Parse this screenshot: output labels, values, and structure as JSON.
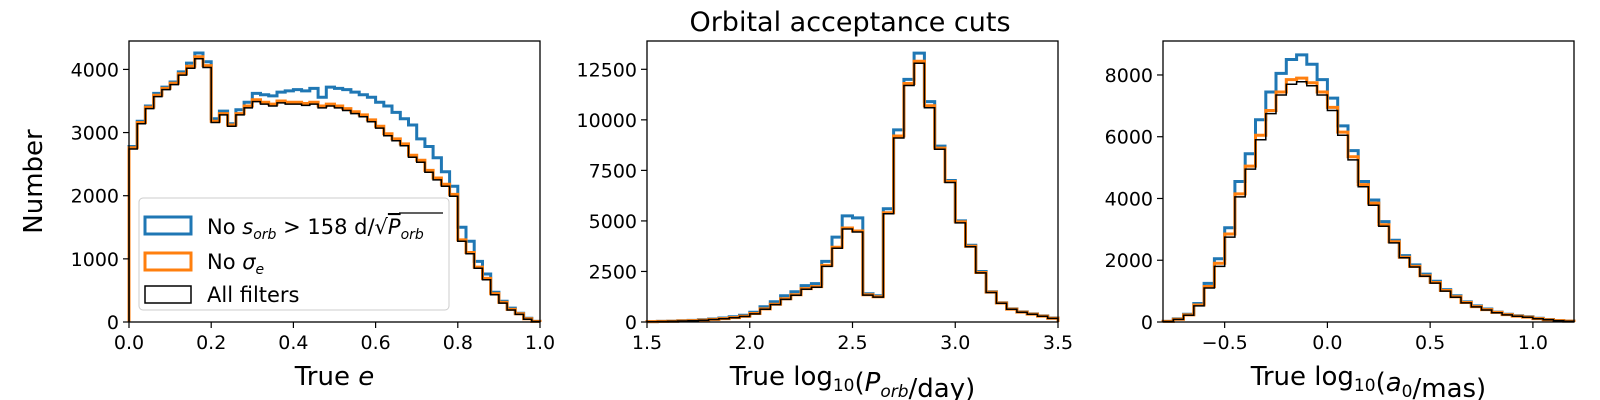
{
  "figure_title": "Orbital acceptance cuts",
  "colors": {
    "no_sorb": "#1f77b4",
    "no_sigma_e": "#ff7f0e",
    "all_filters": "#000000"
  },
  "legend": {
    "no_sorb_label": "No s_orb > 158 d/√P_orb",
    "no_sigma_label": "No σ_e",
    "all_label": "All filters"
  },
  "chart_data": [
    {
      "type": "histogram",
      "title": "",
      "xlabel": "True e",
      "ylabel": "Number",
      "xlim": [
        0.0,
        1.0
      ],
      "ylim": [
        0,
        4450
      ],
      "xticks": [
        0.0,
        0.2,
        0.4,
        0.6,
        0.8,
        1.0
      ],
      "xtick_labels": [
        "0.0",
        "0.2",
        "0.4",
        "0.6",
        "0.8",
        "1.0"
      ],
      "yticks": [
        0,
        1000,
        2000,
        3000,
        4000
      ],
      "ytick_labels": [
        "0",
        "1000",
        "2000",
        "3000",
        "4000"
      ],
      "legend_position": "lower-left",
      "bins": [
        0.0,
        0.02,
        0.04,
        0.06,
        0.08,
        0.1,
        0.12,
        0.14,
        0.16,
        0.18,
        0.2,
        0.22,
        0.24,
        0.26,
        0.28,
        0.3,
        0.32,
        0.34,
        0.36,
        0.38,
        0.4,
        0.42,
        0.44,
        0.46,
        0.48,
        0.5,
        0.52,
        0.54,
        0.56,
        0.58,
        0.6,
        0.62,
        0.64,
        0.66,
        0.68,
        0.7,
        0.72,
        0.74,
        0.76,
        0.78,
        0.8,
        0.82,
        0.84,
        0.86,
        0.88,
        0.9,
        0.92,
        0.94,
        0.96,
        0.98,
        1.0
      ],
      "series": [
        {
          "name": "No s_orb > 158 d/√P_orb",
          "key": "no_sorb",
          "values": [
            2780,
            3180,
            3420,
            3620,
            3720,
            3800,
            3960,
            4100,
            4260,
            4120,
            3220,
            3340,
            3140,
            3360,
            3480,
            3620,
            3600,
            3580,
            3640,
            3660,
            3680,
            3660,
            3700,
            3560,
            3720,
            3700,
            3680,
            3640,
            3600,
            3560,
            3480,
            3420,
            3320,
            3220,
            3120,
            2900,
            2780,
            2600,
            2380,
            2150,
            1500,
            1280,
            960,
            760,
            470,
            330,
            220,
            140,
            60,
            10
          ]
        },
        {
          "name": "No σ_e",
          "key": "no_sigma_e",
          "values": [
            2760,
            3160,
            3400,
            3590,
            3700,
            3780,
            3930,
            4050,
            4200,
            4060,
            3180,
            3300,
            3120,
            3300,
            3420,
            3520,
            3480,
            3450,
            3500,
            3480,
            3480,
            3460,
            3480,
            3420,
            3450,
            3420,
            3380,
            3330,
            3280,
            3200,
            3100,
            2980,
            2900,
            2820,
            2640,
            2560,
            2400,
            2280,
            2180,
            2020,
            1300,
            1100,
            870,
            690,
            450,
            310,
            200,
            130,
            50,
            10
          ]
        },
        {
          "name": "All filters",
          "key": "all_filters",
          "values": [
            2740,
            3140,
            3380,
            3570,
            3680,
            3760,
            3910,
            4020,
            4170,
            4030,
            3160,
            3280,
            3100,
            3280,
            3390,
            3490,
            3450,
            3420,
            3470,
            3450,
            3450,
            3430,
            3450,
            3390,
            3420,
            3390,
            3350,
            3300,
            3250,
            3170,
            3070,
            2950,
            2870,
            2790,
            2610,
            2530,
            2370,
            2250,
            2150,
            1990,
            1280,
            1080,
            850,
            670,
            430,
            300,
            190,
            120,
            45,
            8
          ]
        }
      ]
    },
    {
      "type": "histogram",
      "title": "Orbital acceptance cuts",
      "xlabel": "True log10(P_orb/day)",
      "ylabel": "",
      "xlim": [
        1.5,
        3.5
      ],
      "ylim": [
        0,
        13900
      ],
      "xticks": [
        1.5,
        2.0,
        2.5,
        3.0,
        3.5
      ],
      "xtick_labels": [
        "1.5",
        "2.0",
        "2.5",
        "3.0",
        "3.5"
      ],
      "yticks": [
        0,
        2500,
        5000,
        7500,
        10000,
        12500
      ],
      "ytick_labels": [
        "0",
        "2500",
        "5000",
        "7500",
        "10000",
        "12500"
      ],
      "bins": [
        1.5,
        1.55,
        1.6,
        1.65,
        1.7,
        1.75,
        1.8,
        1.85,
        1.9,
        1.95,
        2.0,
        2.05,
        2.1,
        2.15,
        2.2,
        2.25,
        2.3,
        2.35,
        2.4,
        2.45,
        2.5,
        2.55,
        2.6,
        2.65,
        2.7,
        2.75,
        2.8,
        2.85,
        2.9,
        2.95,
        3.0,
        3.05,
        3.1,
        3.15,
        3.2,
        3.25,
        3.3,
        3.35,
        3.4,
        3.45,
        3.5
      ],
      "series": [
        {
          "name": "No s_orb > 158 d/√P_orb",
          "key": "no_sorb",
          "values": [
            20,
            30,
            40,
            60,
            80,
            110,
            150,
            200,
            260,
            330,
            480,
            750,
            1000,
            1300,
            1500,
            1800,
            1900,
            3000,
            4200,
            5250,
            5150,
            1400,
            1300,
            5600,
            9500,
            12000,
            13300,
            10900,
            8700,
            7000,
            5000,
            3800,
            2500,
            1500,
            950,
            650,
            500,
            400,
            300,
            200
          ]
        },
        {
          "name": "No σ_e",
          "key": "no_sigma_e",
          "values": [
            18,
            28,
            38,
            55,
            70,
            95,
            130,
            170,
            220,
            280,
            420,
            650,
            880,
            1150,
            1350,
            1650,
            1750,
            2800,
            3700,
            4650,
            4500,
            1350,
            1250,
            5400,
            9200,
            11800,
            12900,
            10700,
            8600,
            6950,
            4950,
            3750,
            2450,
            1480,
            940,
            640,
            490,
            390,
            290,
            190
          ]
        },
        {
          "name": "All filters",
          "key": "all_filters",
          "values": [
            15,
            25,
            35,
            50,
            65,
            90,
            125,
            160,
            210,
            270,
            400,
            630,
            860,
            1120,
            1320,
            1620,
            1720,
            2750,
            3650,
            4600,
            4450,
            1330,
            1230,
            5350,
            9100,
            11700,
            12800,
            10600,
            8550,
            6900,
            4900,
            3720,
            2430,
            1460,
            930,
            630,
            480,
            380,
            280,
            180
          ]
        }
      ]
    },
    {
      "type": "histogram",
      "title": "",
      "xlabel": "True log10(a0/mas)",
      "ylabel": "",
      "xlim": [
        -0.8,
        1.2
      ],
      "ylim": [
        0,
        9100
      ],
      "xticks": [
        -0.5,
        0.0,
        0.5,
        1.0
      ],
      "xtick_labels": [
        "−0.5",
        "0.0",
        "0.5",
        "1.0"
      ],
      "yticks": [
        0,
        2000,
        4000,
        6000,
        8000
      ],
      "ytick_labels": [
        "0",
        "2000",
        "4000",
        "6000",
        "8000"
      ],
      "bins": [
        -0.8,
        -0.75,
        -0.7,
        -0.65,
        -0.6,
        -0.55,
        -0.5,
        -0.45,
        -0.4,
        -0.35,
        -0.3,
        -0.25,
        -0.2,
        -0.15,
        -0.1,
        -0.05,
        0.0,
        0.05,
        0.1,
        0.15,
        0.2,
        0.25,
        0.3,
        0.35,
        0.4,
        0.45,
        0.5,
        0.55,
        0.6,
        0.65,
        0.7,
        0.75,
        0.8,
        0.85,
        0.9,
        0.95,
        1.0,
        1.05,
        1.1,
        1.15,
        1.2
      ],
      "series": [
        {
          "name": "No s_orb > 158 d/√P_orb",
          "key": "no_sorb",
          "values": [
            20,
            100,
            250,
            600,
            1250,
            2050,
            3050,
            4550,
            5450,
            6550,
            7450,
            8050,
            8500,
            8650,
            8350,
            7850,
            7250,
            6350,
            5550,
            4550,
            3950,
            3250,
            2650,
            2150,
            1850,
            1550,
            1320,
            1050,
            850,
            650,
            520,
            420,
            320,
            250,
            200,
            170,
            120,
            80,
            50,
            30
          ]
        },
        {
          "name": "No σ_e",
          "key": "no_sigma_e",
          "values": [
            18,
            90,
            230,
            550,
            1150,
            1900,
            2850,
            4150,
            5050,
            6050,
            6850,
            7450,
            7850,
            7900,
            7750,
            7450,
            6950,
            6150,
            5350,
            4450,
            3850,
            3150,
            2600,
            2100,
            1800,
            1500,
            1280,
            1020,
            820,
            630,
            500,
            400,
            310,
            240,
            190,
            160,
            110,
            75,
            45,
            28
          ]
        },
        {
          "name": "All filters",
          "key": "all_filters",
          "values": [
            15,
            85,
            220,
            520,
            1100,
            1800,
            2750,
            4050,
            4950,
            5900,
            6750,
            7350,
            7700,
            7780,
            7650,
            7350,
            6850,
            6050,
            5250,
            4380,
            3780,
            3100,
            2560,
            2080,
            1780,
            1480,
            1260,
            1000,
            800,
            620,
            490,
            390,
            300,
            230,
            185,
            155,
            105,
            70,
            42,
            25
          ]
        }
      ]
    }
  ]
}
